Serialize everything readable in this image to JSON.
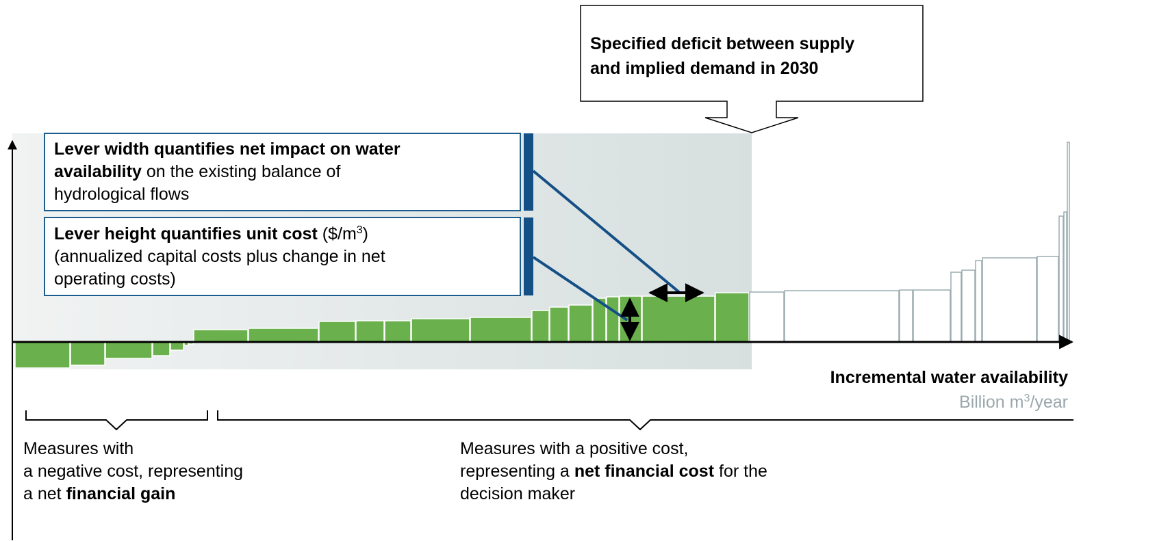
{
  "callout": {
    "lines": [
      "Specified deficit between supply",
      "and implied demand in 2030"
    ]
  },
  "width_box": {
    "line1": "Lever width quantifies net impact on water",
    "line2_bold": "availability",
    "line2_rest": "on the existing balance of",
    "line3": "hydrological flows"
  },
  "height_box": {
    "line1_bold": "Lever height quantifies unit cost",
    "unit_open": "($/m",
    "unit_sup": "3",
    "unit_close": ")",
    "line2": "(annualized capital costs plus change in net",
    "line3": "operating costs)"
  },
  "x_axis": {
    "label": "Incremental water availability",
    "unit_base": "Billion m",
    "unit_sup": "3",
    "unit_rest": "/year"
  },
  "negative_note": {
    "line1": "Measures with",
    "line2": "a negative cost, representing",
    "line3_start": "a net",
    "line3_bold": "financial gain"
  },
  "positive_note": {
    "line1": "Measures with a positive cost,",
    "line2_start": "representing a",
    "line2_bold": "net financial cost",
    "line2_end": "for the",
    "line3": "decision maker"
  }
}
